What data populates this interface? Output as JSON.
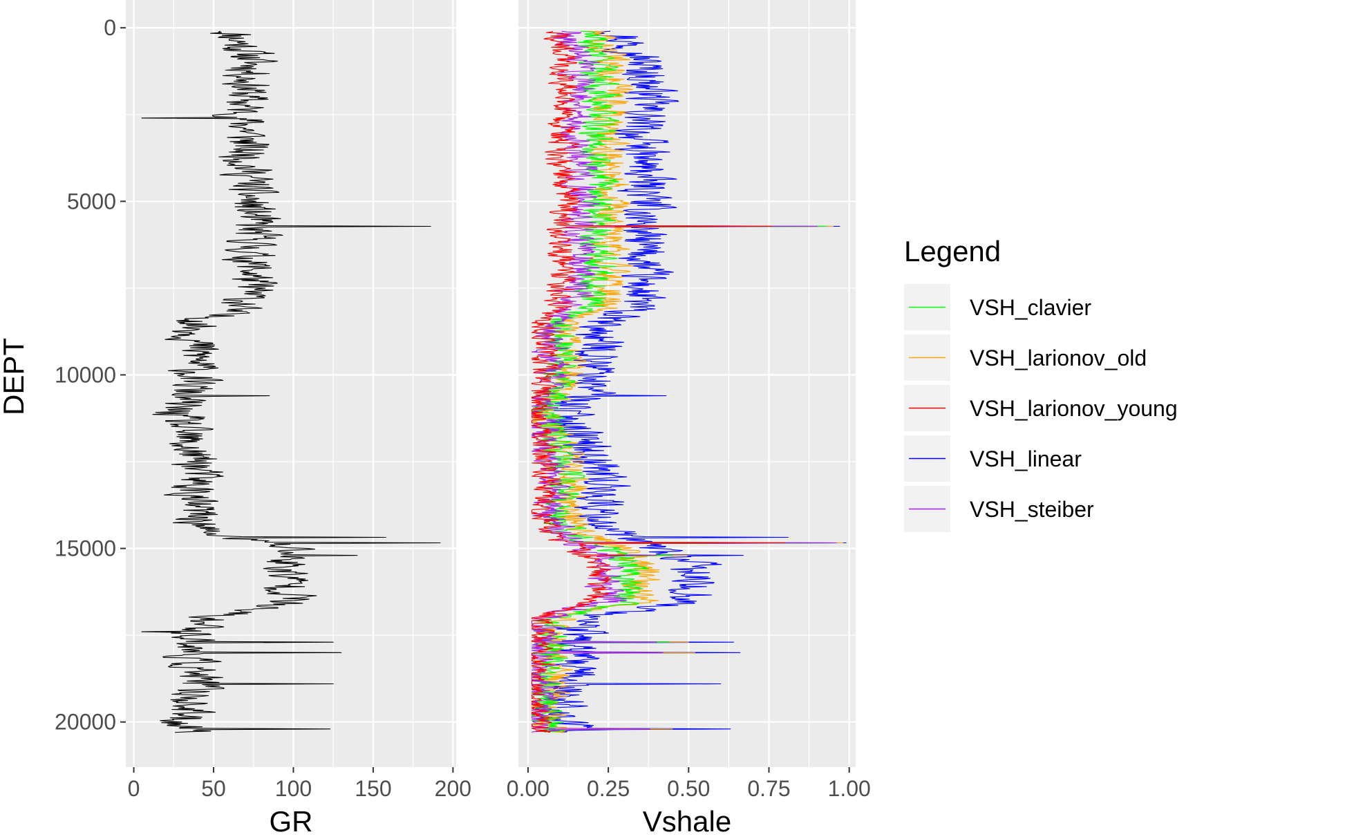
{
  "chart_data": [
    {
      "type": "line",
      "panel": "left",
      "xlabel": "GR",
      "ylabel": "DEPT",
      "xlim": [
        -5,
        202
      ],
      "ylim": [
        21300,
        -800
      ],
      "y_reversed": true,
      "xticks": [
        "0",
        "50",
        "100",
        "150",
        "200"
      ],
      "yticks": [
        "0",
        "5000",
        "10000",
        "15000",
        "20000"
      ],
      "grid": true,
      "series": [
        {
          "color": "#000000",
          "noise": 14,
          "depth": [
            0,
            500,
            1000,
            1500,
            2000,
            2500,
            3000,
            3500,
            4000,
            4500,
            5000,
            5500,
            5800,
            6000,
            6500,
            7000,
            7500,
            8000,
            8500,
            9000,
            9500,
            10000,
            10500,
            11000,
            11500,
            12000,
            12500,
            13000,
            13500,
            14000,
            14500,
            15000,
            15500,
            16000,
            16500,
            17000,
            17500,
            18000,
            18500,
            19000,
            19500,
            20000,
            20300
          ],
          "values": [
            60,
            68,
            75,
            72,
            70,
            68,
            72,
            70,
            72,
            73,
            72,
            75,
            74,
            76,
            72,
            75,
            74,
            68,
            40,
            38,
            40,
            38,
            35,
            25,
            30,
            32,
            40,
            40,
            35,
            40,
            42,
            100,
            95,
            98,
            100,
            45,
            40,
            35,
            38,
            40,
            35,
            30,
            40
          ],
          "spikes": [
            [
              2600,
              5
            ],
            [
              5720,
              186
            ],
            [
              10600,
              85
            ],
            [
              14690,
              158
            ],
            [
              14850,
              192
            ],
            [
              15200,
              140
            ],
            [
              17400,
              5
            ],
            [
              17700,
              125
            ],
            [
              18000,
              130
            ],
            [
              18900,
              125
            ],
            [
              20200,
              123
            ]
          ]
        }
      ]
    },
    {
      "type": "line",
      "panel": "right",
      "xlabel": "Vshale",
      "xlim": [
        -0.03,
        1.02
      ],
      "ylim": [
        21300,
        -800
      ],
      "y_reversed": true,
      "xticks": [
        "0.00",
        "0.25",
        "0.50",
        "0.75",
        "1.00"
      ],
      "grid": true,
      "legend": {
        "title": "Legend",
        "position": "right"
      },
      "series": [
        {
          "name": "VSH_linear",
          "color": "#0000ff",
          "noise": 0.07,
          "depth": [
            0,
            1000,
            2000,
            3000,
            4000,
            5000,
            6000,
            7000,
            8000,
            8500,
            9500,
            10500,
            11000,
            12000,
            13000,
            14000,
            14500,
            15000,
            15500,
            16000,
            16500,
            17000,
            18000,
            19000,
            20000,
            20300
          ],
          "values": [
            0.28,
            0.36,
            0.38,
            0.34,
            0.36,
            0.37,
            0.35,
            0.36,
            0.34,
            0.22,
            0.22,
            0.2,
            0.12,
            0.18,
            0.24,
            0.22,
            0.25,
            0.4,
            0.52,
            0.5,
            0.52,
            0.18,
            0.14,
            0.12,
            0.1,
            0.18
          ],
          "spikes": [
            [
              5720,
              0.97
            ],
            [
              10600,
              0.43
            ],
            [
              14690,
              0.81
            ],
            [
              14850,
              0.99
            ],
            [
              15200,
              0.67
            ],
            [
              17700,
              0.64
            ],
            [
              18000,
              0.66
            ],
            [
              18900,
              0.6
            ],
            [
              20200,
              0.63
            ]
          ]
        },
        {
          "name": "VSH_larionov_old",
          "color": "#ffa500",
          "noise": 0.05,
          "depth": [
            0,
            1000,
            2000,
            3000,
            4000,
            5000,
            6000,
            7000,
            8000,
            8500,
            9500,
            10500,
            11000,
            12000,
            13000,
            14000,
            14500,
            15000,
            15500,
            16000,
            16500,
            17000,
            18000,
            19000,
            20000,
            20300
          ],
          "values": [
            0.2,
            0.26,
            0.27,
            0.24,
            0.26,
            0.27,
            0.25,
            0.26,
            0.24,
            0.12,
            0.12,
            0.11,
            0.06,
            0.1,
            0.14,
            0.12,
            0.15,
            0.29,
            0.36,
            0.35,
            0.36,
            0.1,
            0.08,
            0.07,
            0.06,
            0.1
          ],
          "spikes": [
            [
              5720,
              0.95
            ],
            [
              14850,
              0.98
            ],
            [
              15200,
              0.5
            ],
            [
              17700,
              0.5
            ],
            [
              18000,
              0.52
            ],
            [
              20200,
              0.45
            ]
          ]
        },
        {
          "name": "VSH_clavier",
          "color": "#00ff00",
          "noise": 0.05,
          "depth": [
            0,
            1000,
            2000,
            3000,
            4000,
            5000,
            6000,
            7000,
            8000,
            8500,
            9500,
            10500,
            11000,
            12000,
            13000,
            14000,
            14500,
            15000,
            15500,
            16000,
            16500,
            17000,
            18000,
            19000,
            20000,
            20300
          ],
          "values": [
            0.18,
            0.22,
            0.23,
            0.21,
            0.22,
            0.23,
            0.21,
            0.22,
            0.2,
            0.1,
            0.1,
            0.09,
            0.05,
            0.09,
            0.12,
            0.1,
            0.12,
            0.25,
            0.32,
            0.31,
            0.32,
            0.08,
            0.07,
            0.06,
            0.05,
            0.08
          ],
          "spikes": [
            [
              5720,
              0.93
            ],
            [
              14850,
              0.96
            ],
            [
              15200,
              0.45
            ],
            [
              17700,
              0.44
            ]
          ]
        },
        {
          "name": "VSH_steiber",
          "color": "#a020f0",
          "noise": 0.05,
          "depth": [
            0,
            1000,
            2000,
            3000,
            4000,
            5000,
            6000,
            7000,
            8000,
            8500,
            9500,
            10500,
            11000,
            12000,
            13000,
            14000,
            14500,
            15000,
            15500,
            16000,
            16500,
            17000,
            18000,
            19000,
            20000,
            20300
          ],
          "values": [
            0.12,
            0.16,
            0.17,
            0.15,
            0.16,
            0.17,
            0.15,
            0.16,
            0.14,
            0.07,
            0.07,
            0.06,
            0.03,
            0.06,
            0.08,
            0.07,
            0.09,
            0.19,
            0.25,
            0.24,
            0.25,
            0.05,
            0.04,
            0.04,
            0.03,
            0.06
          ],
          "spikes": [
            [
              5720,
              0.9
            ],
            [
              14850,
              0.96
            ],
            [
              15200,
              0.4
            ],
            [
              17700,
              0.4
            ],
            [
              18000,
              0.42
            ],
            [
              20200,
              0.38
            ]
          ]
        },
        {
          "name": "VSH_larionov_young",
          "color": "#ff0000",
          "noise": 0.04,
          "depth": [
            0,
            1000,
            2000,
            3000,
            4000,
            5000,
            6000,
            7000,
            8000,
            8500,
            9500,
            10500,
            11000,
            12000,
            13000,
            14000,
            14500,
            15000,
            15500,
            16000,
            16500,
            17000,
            18000,
            19000,
            20000,
            20300
          ],
          "values": [
            0.09,
            0.11,
            0.12,
            0.1,
            0.11,
            0.12,
            0.1,
            0.11,
            0.1,
            0.05,
            0.05,
            0.04,
            0.02,
            0.04,
            0.06,
            0.05,
            0.06,
            0.16,
            0.22,
            0.21,
            0.22,
            0.04,
            0.03,
            0.03,
            0.02,
            0.04
          ],
          "spikes": [
            [
              5720,
              0.76
            ],
            [
              14850,
              0.8
            ],
            [
              15200,
              0.3
            ]
          ]
        }
      ]
    }
  ],
  "legend_items": [
    {
      "label": "VSH_clavier",
      "color": "#00ff00"
    },
    {
      "label": "VSH_larionov_old",
      "color": "#ffa500"
    },
    {
      "label": "VSH_larionov_young",
      "color": "#ff0000"
    },
    {
      "label": "VSH_linear",
      "color": "#0000ff"
    },
    {
      "label": "VSH_steiber",
      "color": "#a020f0"
    }
  ],
  "colors": {
    "panel_background": "#ebebeb",
    "grid_major": "#ffffff",
    "tick_text": "#4d4d4d",
    "legend_key_background": "#f2f2f2"
  }
}
